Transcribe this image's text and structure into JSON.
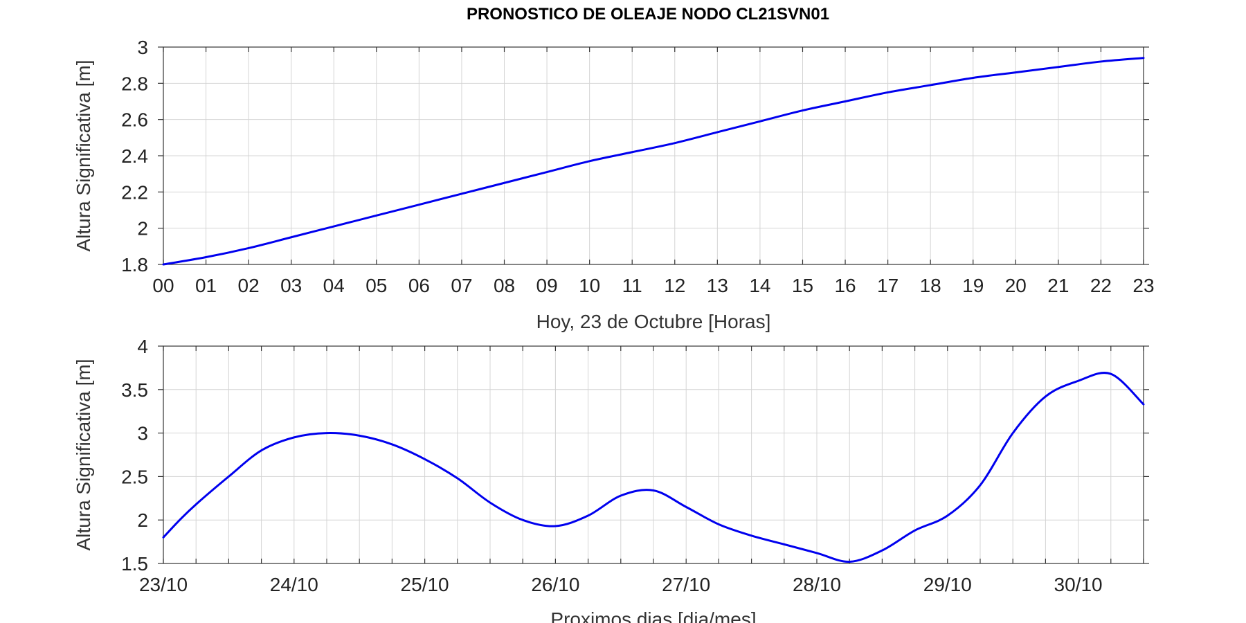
{
  "title": "PRONOSTICO DE OLEAJE NODO CL21SVN01",
  "colors": {
    "series": "#0000ee",
    "grid": "#d4d4d4",
    "frame": "#333333"
  },
  "chart_data": [
    {
      "type": "line",
      "xlabel": "Hoy, 23 de   Octubre   [Horas]",
      "ylabel": "Altura Significativa [m]",
      "x_tick_labels": [
        "00",
        "01",
        "02",
        "03",
        "04",
        "05",
        "06",
        "07",
        "08",
        "09",
        "10",
        "11",
        "12",
        "13",
        "14",
        "15",
        "16",
        "17",
        "18",
        "19",
        "20",
        "21",
        "22",
        "23"
      ],
      "xlim": [
        0,
        23
      ],
      "ylim": [
        1.8,
        3
      ],
      "y_ticks": [
        1.8,
        2,
        2.2,
        2.4,
        2.6,
        2.8,
        3
      ],
      "y_tick_labels": [
        "1.8",
        "2",
        "2.2",
        "2.4",
        "2.6",
        "2.8",
        "3"
      ],
      "grid": true,
      "series": [
        {
          "x": [
            0,
            1,
            2,
            3,
            4,
            5,
            6,
            7,
            8,
            9,
            10,
            11,
            12,
            13,
            14,
            15,
            16,
            17,
            18,
            19,
            20,
            21,
            22,
            23
          ],
          "values": [
            1.8,
            1.84,
            1.89,
            1.95,
            2.01,
            2.07,
            2.13,
            2.19,
            2.25,
            2.31,
            2.37,
            2.42,
            2.47,
            2.53,
            2.59,
            2.65,
            2.7,
            2.75,
            2.79,
            2.83,
            2.86,
            2.89,
            2.92,
            2.94
          ]
        }
      ]
    },
    {
      "type": "line",
      "xlabel": "Proximos dias [dia/mes]",
      "ylabel": "Altura Significativa [m]",
      "x_tick_labels": [
        "23/10",
        "24/10",
        "25/10",
        "26/10",
        "27/10",
        "28/10",
        "29/10",
        "30/10"
      ],
      "xlim": [
        0,
        7.5
      ],
      "ylim": [
        1.5,
        4
      ],
      "y_ticks": [
        1.5,
        2,
        2.5,
        3,
        3.5,
        4
      ],
      "y_tick_labels": [
        "1.5",
        "2",
        "2.5",
        "3",
        "3.5",
        "4"
      ],
      "grid": true,
      "series": [
        {
          "x": [
            0,
            0.125,
            0.25,
            0.5,
            0.75,
            1.0,
            1.25,
            1.5,
            1.75,
            2.0,
            2.25,
            2.5,
            2.75,
            3.0,
            3.25,
            3.5,
            3.75,
            4.0,
            4.25,
            4.5,
            4.75,
            5.0,
            5.25,
            5.5,
            5.75,
            6.0,
            6.25,
            6.5,
            6.75,
            7.0,
            7.25,
            7.5
          ],
          "values": [
            1.8,
            2.0,
            2.18,
            2.5,
            2.8,
            2.95,
            3.0,
            2.97,
            2.87,
            2.7,
            2.48,
            2.2,
            2.0,
            1.93,
            2.05,
            2.28,
            2.34,
            2.15,
            1.95,
            1.82,
            1.72,
            1.62,
            1.52,
            1.65,
            1.88,
            2.05,
            2.4,
            3.0,
            3.42,
            3.6,
            3.68,
            3.33
          ]
        }
      ]
    }
  ]
}
